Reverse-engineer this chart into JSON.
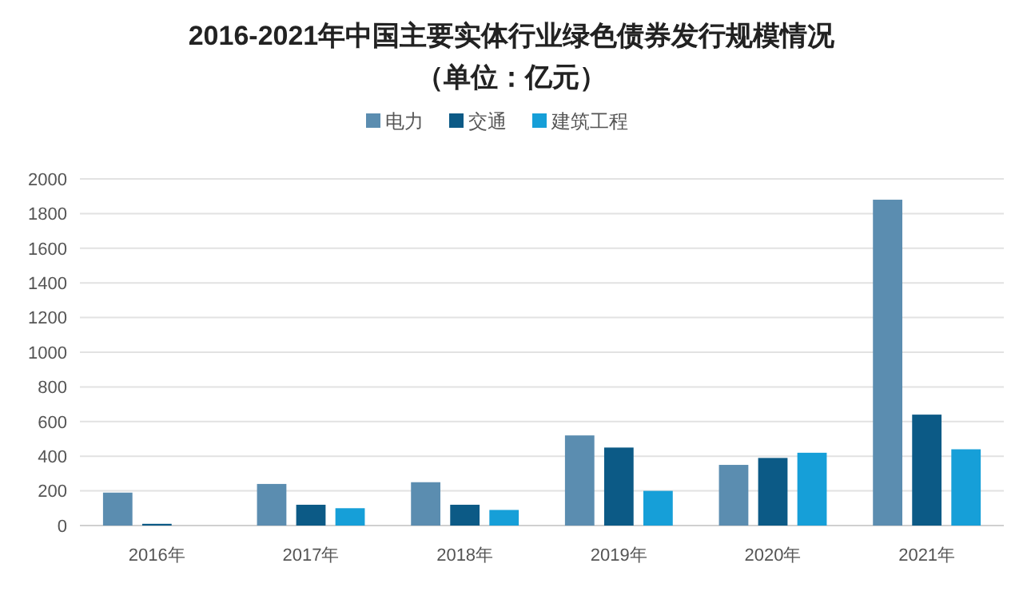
{
  "chart_data": {
    "type": "bar",
    "title": "2016-2021年中国主要实体行业绿色债券发行规模情况",
    "subtitle": "（单位：亿元）",
    "categories": [
      "2016年",
      "2017年",
      "2018年",
      "2019年",
      "2020年",
      "2021年"
    ],
    "series": [
      {
        "name": "电力",
        "color": "#5b8db0",
        "values": [
          190,
          240,
          250,
          520,
          350,
          1880
        ]
      },
      {
        "name": "交通",
        "color": "#0c5a86",
        "values": [
          10,
          120,
          120,
          450,
          390,
          640
        ]
      },
      {
        "name": "建筑工程",
        "color": "#169fd8",
        "values": [
          null,
          100,
          90,
          200,
          420,
          440
        ]
      }
    ],
    "ylim": [
      0,
      2000
    ],
    "yticks": [
      0,
      200,
      400,
      600,
      800,
      1000,
      1200,
      1400,
      1600,
      1800,
      2000
    ],
    "grid": "y",
    "legend": "top"
  }
}
